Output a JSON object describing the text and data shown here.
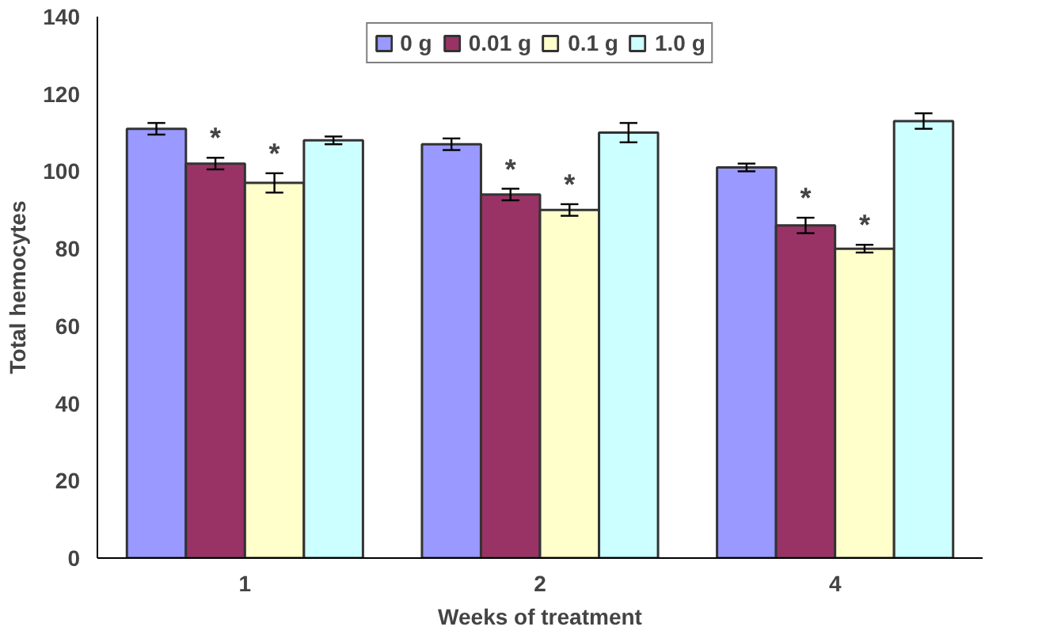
{
  "chart_data": {
    "type": "bar",
    "categories": [
      "1",
      "2",
      "4"
    ],
    "xlabel": "Weeks of treatment",
    "ylabel": "Total hemocytes",
    "ylim": [
      0,
      140
    ],
    "yticks": [
      0,
      20,
      40,
      60,
      80,
      100,
      120,
      140
    ],
    "grid": false,
    "legend": "top",
    "series": [
      {
        "name": "0 g",
        "color": "#9999ff",
        "values": [
          111,
          107,
          101
        ],
        "errors": [
          1.5,
          1.5,
          1
        ]
      },
      {
        "name": "0.01 g",
        "color": "#993366",
        "values": [
          102,
          94,
          86
        ],
        "errors": [
          1.5,
          1.5,
          2
        ],
        "value_labels": [
          "*",
          "*",
          "*"
        ]
      },
      {
        "name": "0.1 g",
        "color": "#ffffcc",
        "values": [
          97,
          90,
          80
        ],
        "errors": [
          2.5,
          1.5,
          1
        ],
        "value_labels": [
          "*",
          "*",
          "*"
        ]
      },
      {
        "name": "1.0 g",
        "color": "#ccffff",
        "values": [
          108,
          110,
          113
        ],
        "errors": [
          1,
          2.5,
          2
        ]
      }
    ]
  }
}
